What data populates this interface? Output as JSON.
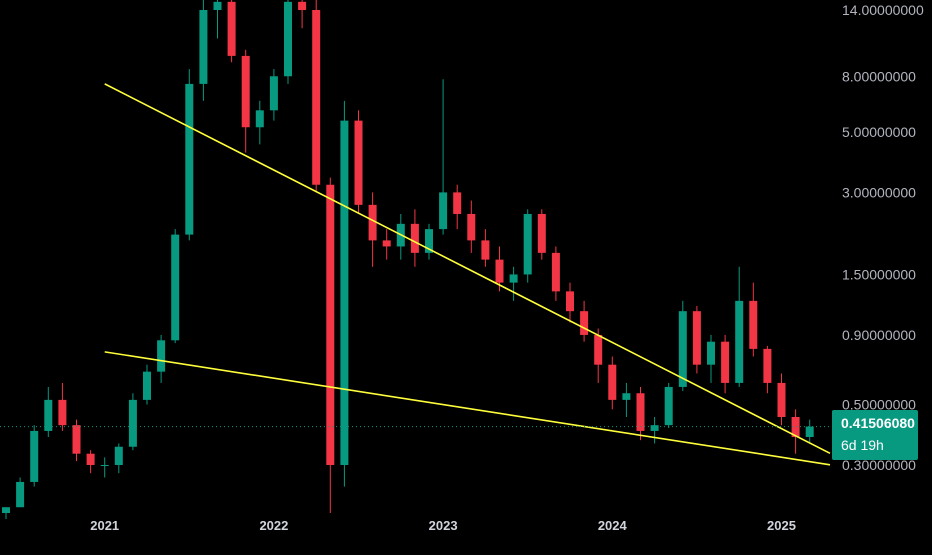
{
  "chart_data": {
    "type": "candlestick",
    "y_scale": "log",
    "grid": false,
    "colors": {
      "up": "#089981",
      "down": "#f23645",
      "trendline": "#ffff3b",
      "last_price_line": "#089981",
      "background": "#000000"
    },
    "x_ticks": [
      "2021",
      "2022",
      "2023",
      "2024",
      "2025"
    ],
    "y_ticks": [
      "14.00000000",
      "8.00000000",
      "5.00000000",
      "3.00000000",
      "1.50000000",
      "0.90000000",
      "0.50000000",
      "0.30000000"
    ],
    "y_tick_values": [
      14,
      8,
      5,
      3,
      1.5,
      0.9,
      0.5,
      0.3
    ],
    "last_price": {
      "label": "0.41506080",
      "value": 0.41506,
      "countdown": "6d 19h"
    },
    "trendlines": [
      {
        "name": "upper",
        "points": [
          [
            "2021-01",
            7.5
          ],
          [
            "2024-09",
            0.52
          ]
        ]
      },
      {
        "name": "lower",
        "points": [
          [
            "2021-01",
            0.78
          ],
          [
            "2024-09",
            0.345
          ]
        ]
      }
    ],
    "candles": [
      [
        "2020-06",
        0.2,
        0.21,
        0.19,
        0.21
      ],
      [
        "2020-07",
        0.21,
        0.27,
        0.21,
        0.26
      ],
      [
        "2020-08",
        0.26,
        0.42,
        0.25,
        0.4
      ],
      [
        "2020-09",
        0.4,
        0.58,
        0.38,
        0.52
      ],
      [
        "2020-10",
        0.52,
        0.6,
        0.4,
        0.42
      ],
      [
        "2020-11",
        0.42,
        0.44,
        0.31,
        0.33
      ],
      [
        "2020-12",
        0.33,
        0.34,
        0.28,
        0.3
      ],
      [
        "2021-01",
        0.3,
        0.32,
        0.27,
        0.3
      ],
      [
        "2021-02",
        0.3,
        0.36,
        0.28,
        0.35
      ],
      [
        "2021-03",
        0.35,
        0.55,
        0.34,
        0.52
      ],
      [
        "2021-04",
        0.52,
        0.7,
        0.5,
        0.66
      ],
      [
        "2021-05",
        0.66,
        0.9,
        0.6,
        0.86
      ],
      [
        "2021-06",
        0.86,
        2.2,
        0.84,
        2.1
      ],
      [
        "2021-07",
        2.1,
        8.5,
        2.0,
        7.5
      ],
      [
        "2021-08",
        7.5,
        16,
        6.5,
        14
      ],
      [
        "2021-09",
        14,
        16,
        11,
        15
      ],
      [
        "2021-10",
        15,
        15.5,
        9,
        9.5
      ],
      [
        "2021-11",
        9.5,
        10,
        4.2,
        5.2
      ],
      [
        "2021-12",
        5.2,
        6.5,
        4.5,
        6.0
      ],
      [
        "2022-01",
        6,
        8.5,
        5.5,
        8
      ],
      [
        "2022-02",
        8,
        16,
        7.5,
        15
      ],
      [
        "2022-03",
        15,
        17,
        12,
        14
      ],
      [
        "2022-04",
        14,
        16,
        3.0,
        3.2
      ],
      [
        "2022-05",
        3.2,
        3.4,
        0.2,
        0.3
      ],
      [
        "2022-06",
        0.3,
        6.5,
        0.25,
        5.5
      ],
      [
        "2022-07",
        5.5,
        6.0,
        2.5,
        2.7
      ],
      [
        "2022-08",
        2.7,
        3.0,
        1.6,
        2.0
      ],
      [
        "2022-09",
        2.0,
        2.2,
        1.7,
        1.9
      ],
      [
        "2022-10",
        1.9,
        2.5,
        1.7,
        2.3
      ],
      [
        "2022-11",
        2.3,
        2.6,
        1.6,
        1.8
      ],
      [
        "2022-12",
        1.8,
        2.3,
        1.7,
        2.2
      ],
      [
        "2023-01",
        2.2,
        7.8,
        2.1,
        3.0
      ],
      [
        "2023-02",
        3.0,
        3.2,
        2.2,
        2.5
      ],
      [
        "2023-03",
        2.5,
        2.8,
        1.8,
        2.0
      ],
      [
        "2023-04",
        2.0,
        2.2,
        1.6,
        1.7
      ],
      [
        "2023-05",
        1.7,
        1.9,
        1.3,
        1.4
      ],
      [
        "2023-06",
        1.4,
        1.6,
        1.2,
        1.5
      ],
      [
        "2023-07",
        1.5,
        2.6,
        1.4,
        2.5
      ],
      [
        "2023-08",
        2.5,
        2.6,
        1.7,
        1.8
      ],
      [
        "2023-09",
        1.8,
        1.9,
        1.2,
        1.3
      ],
      [
        "2023-10",
        1.3,
        1.4,
        1.0,
        1.1
      ],
      [
        "2023-11",
        1.1,
        1.2,
        0.85,
        0.9
      ],
      [
        "2023-12",
        0.9,
        0.95,
        0.6,
        0.7
      ],
      [
        "2024-01",
        0.7,
        0.75,
        0.48,
        0.52
      ],
      [
        "2024-02",
        0.52,
        0.6,
        0.45,
        0.55
      ],
      [
        "2024-03",
        0.55,
        0.58,
        0.37,
        0.4
      ],
      [
        "2024-04",
        0.4,
        0.45,
        0.36,
        0.42
      ],
      [
        "2024-05",
        0.42,
        0.6,
        0.41,
        0.58
      ],
      [
        "2024-06",
        0.58,
        1.2,
        0.56,
        1.1
      ],
      [
        "2024-07",
        1.1,
        1.15,
        0.65,
        0.7
      ],
      [
        "2024-08",
        0.7,
        0.9,
        0.6,
        0.85
      ],
      [
        "2024-09",
        0.85,
        0.9,
        0.55,
        0.6
      ],
      [
        "2024-10",
        0.6,
        1.6,
        0.58,
        1.2
      ],
      [
        "2024-11",
        1.2,
        1.4,
        0.75,
        0.8
      ],
      [
        "2024-12",
        0.8,
        0.82,
        0.55,
        0.6
      ],
      [
        "2025-01",
        0.6,
        0.65,
        0.42,
        0.45
      ],
      [
        "2025-02",
        0.45,
        0.48,
        0.33,
        0.38
      ],
      [
        "2025-03",
        0.38,
        0.44,
        0.36,
        0.415
      ]
    ]
  }
}
